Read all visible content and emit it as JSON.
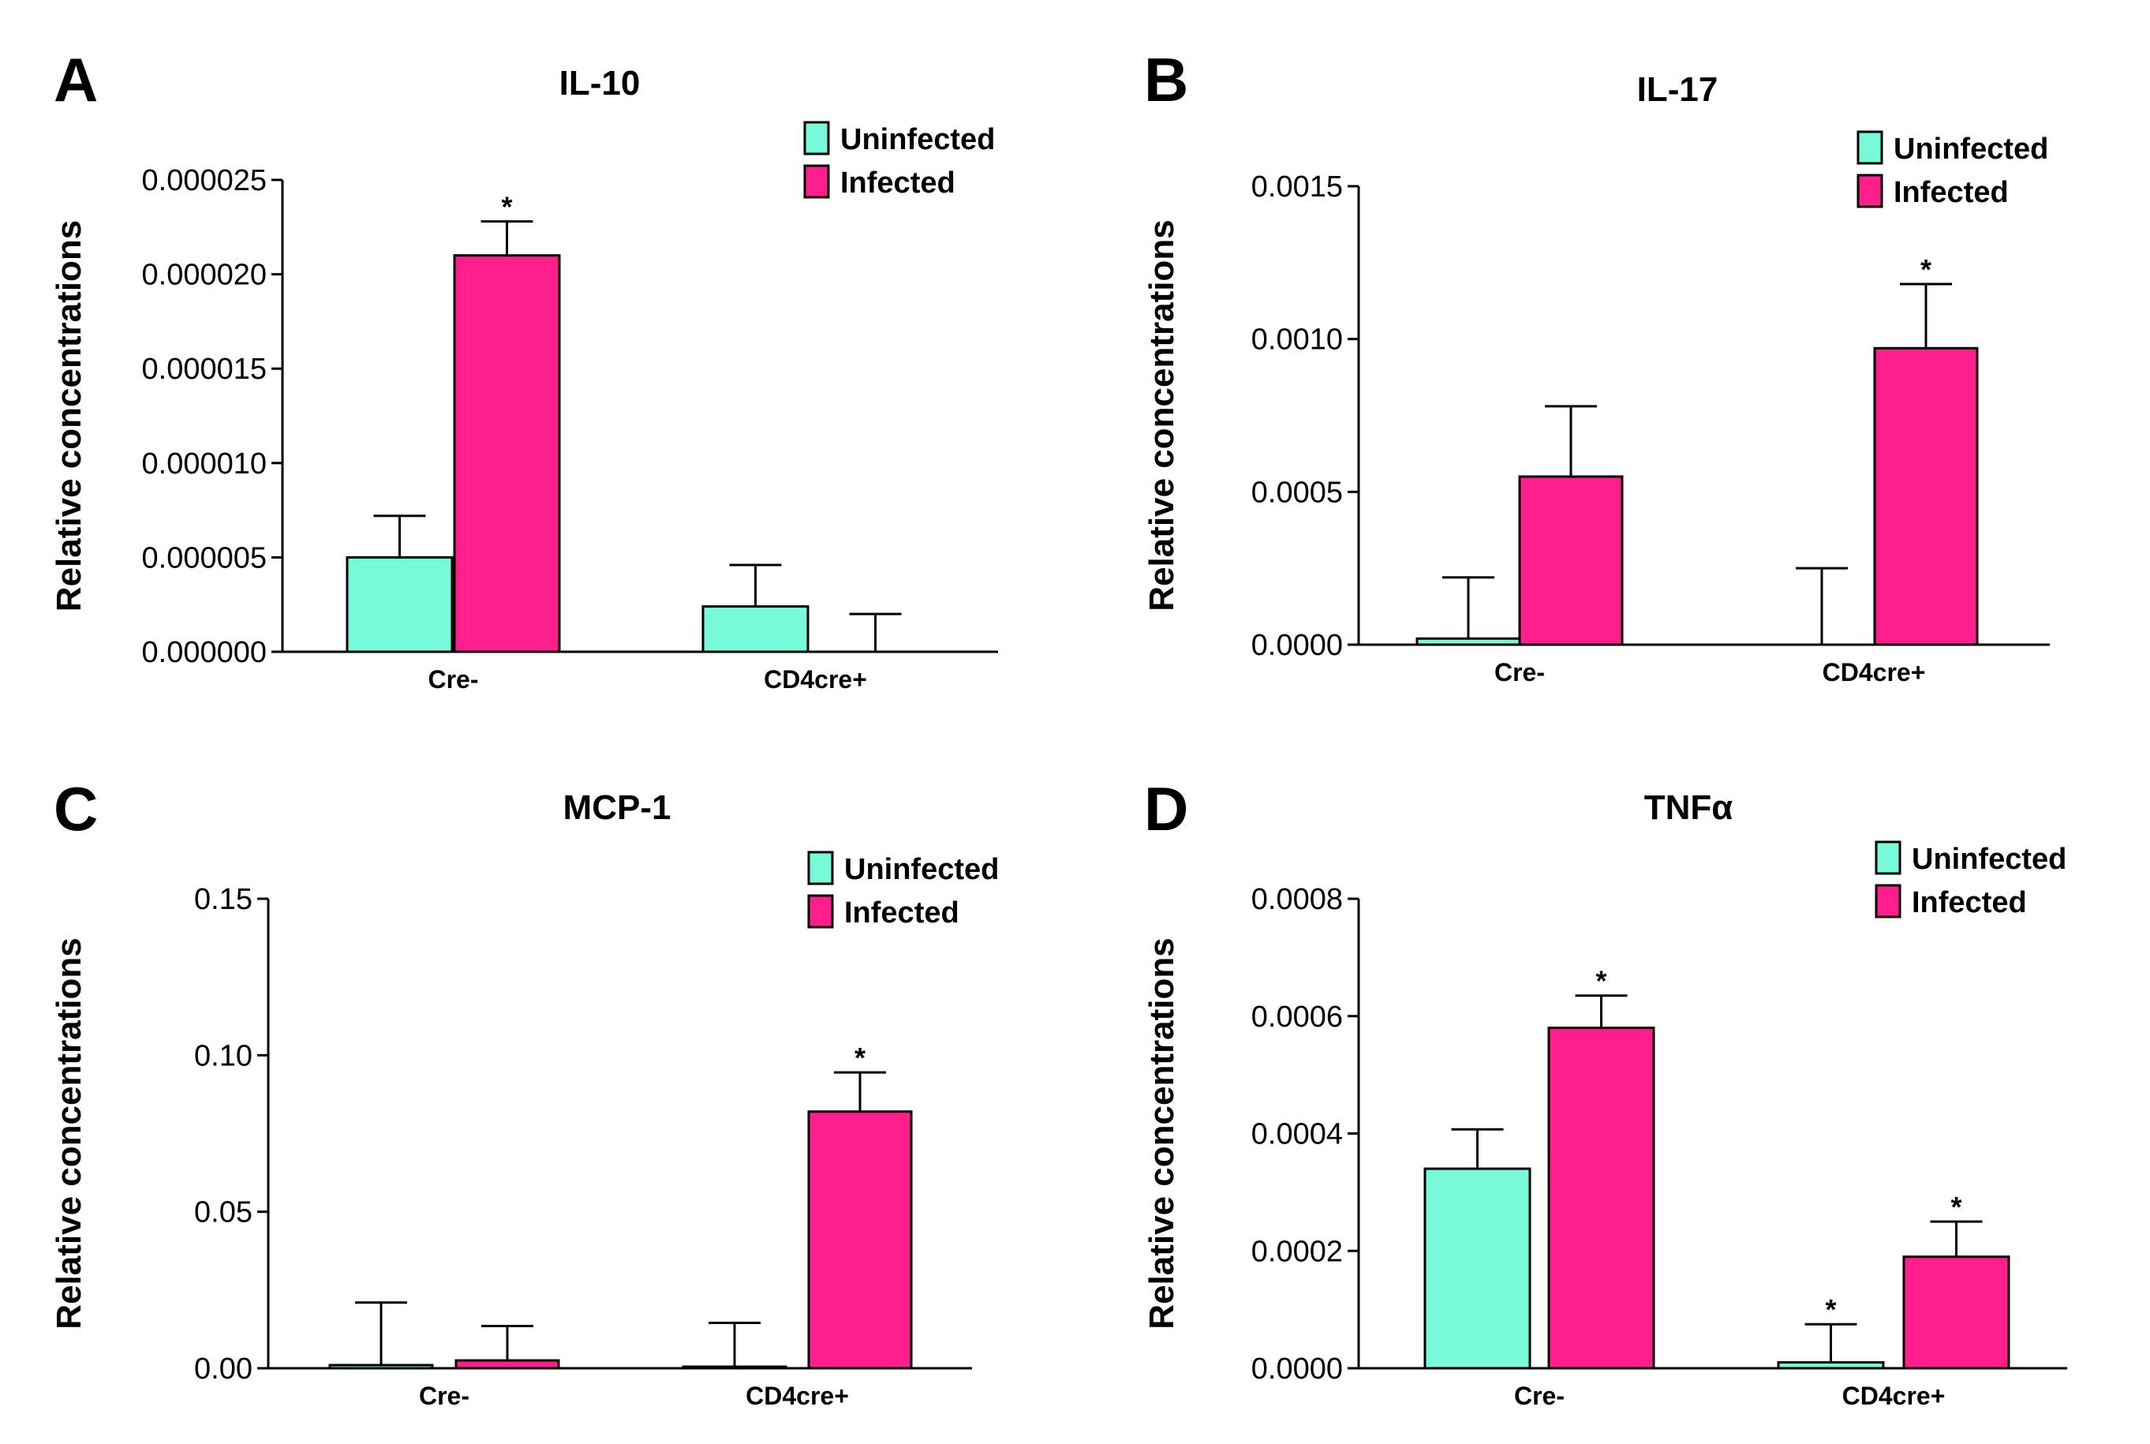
{
  "colors": {
    "Uninfected": "#76FAD8",
    "Infected": "#FF1E8C"
  },
  "chart_data": [
    {
      "type": "bar",
      "panel": "A",
      "title": "IL-10",
      "ylabel": "Relative concentrations",
      "xlabel": "",
      "categories": [
        "Cre-",
        "CD4cre+"
      ],
      "ylim": [
        0,
        2.5e-05
      ],
      "yticks": [
        "0.000000",
        "0.000005",
        "0.000010",
        "0.000015",
        "0.000020",
        "0.000025"
      ],
      "legend": "top-right",
      "series": [
        {
          "name": "Uninfected",
          "values": [
            5e-06,
            2.4e-06
          ],
          "errors": [
            2.2e-06,
            2.2e-06
          ],
          "significant": [
            false,
            false
          ]
        },
        {
          "name": "Infected",
          "values": [
            2.1e-05,
            0.0
          ],
          "errors": [
            1.8e-06,
            2e-06
          ],
          "significant": [
            true,
            false
          ]
        }
      ]
    },
    {
      "type": "bar",
      "panel": "B",
      "title": "IL-17",
      "ylabel": "Relative concentrations",
      "xlabel": "",
      "categories": [
        "Cre-",
        "CD4cre+"
      ],
      "ylim": [
        0,
        0.0015
      ],
      "yticks": [
        "0.0000",
        "0.0005",
        "0.0010",
        "0.0015"
      ],
      "legend": "top-right",
      "series": [
        {
          "name": "Uninfected",
          "values": [
            2e-05,
            0.0
          ],
          "errors": [
            0.0002,
            0.00025
          ],
          "significant": [
            false,
            false
          ]
        },
        {
          "name": "Infected",
          "values": [
            0.00055,
            0.00097
          ],
          "errors": [
            0.00023,
            0.00021
          ],
          "significant": [
            false,
            true
          ]
        }
      ]
    },
    {
      "type": "bar",
      "panel": "C",
      "title": "MCP-1",
      "ylabel": "Relative concentrations",
      "xlabel": "",
      "categories": [
        "Cre-",
        "CD4cre+"
      ],
      "ylim": [
        0,
        0.15
      ],
      "yticks": [
        "0.00",
        "0.05",
        "0.10",
        "0.15"
      ],
      "legend": "top-right",
      "series": [
        {
          "name": "Uninfected",
          "values": [
            0.001,
            0.0005
          ],
          "errors": [
            0.02,
            0.014
          ],
          "significant": [
            false,
            false
          ]
        },
        {
          "name": "Infected",
          "values": [
            0.0025,
            0.082
          ],
          "errors": [
            0.011,
            0.0125
          ],
          "significant": [
            false,
            true
          ]
        }
      ]
    },
    {
      "type": "bar",
      "panel": "D",
      "title": "TNFα",
      "ylabel": "Relative concentrations",
      "xlabel": "",
      "categories": [
        "Cre-",
        "CD4cre+"
      ],
      "ylim": [
        0,
        0.0008
      ],
      "yticks": [
        "0.0000",
        "0.0002",
        "0.0004",
        "0.0006",
        "0.0008"
      ],
      "legend": "top-right",
      "series": [
        {
          "name": "Uninfected",
          "values": [
            0.00034,
            1e-05
          ],
          "errors": [
            6.7e-05,
            6.5e-05
          ],
          "significant": [
            false,
            true
          ]
        },
        {
          "name": "Infected",
          "values": [
            0.00058,
            0.00019
          ],
          "errors": [
            5.5e-05,
            6e-05
          ],
          "significant": [
            true,
            true
          ]
        }
      ]
    }
  ]
}
